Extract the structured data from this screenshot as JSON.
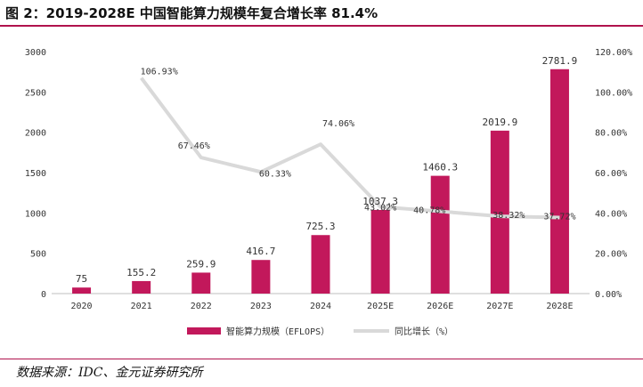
{
  "figure": {
    "title": "图 2：2019-2028E 中国智能算力规模年复合增长率 81.4%",
    "source": "数据来源：IDC、金元证券研究所"
  },
  "colors": {
    "accent": "#b0124d",
    "bar": "#c2185b",
    "line": "#d9d9d9"
  },
  "chart_data": {
    "type": "bar",
    "categories": [
      "2020",
      "2021",
      "2022",
      "2023",
      "2024",
      "2025E",
      "2026E",
      "2027E",
      "2028E"
    ],
    "series": [
      {
        "name": "智能算力规模（EFLOPS）",
        "type": "bar",
        "axis": "left",
        "values": [
          75,
          155.2,
          259.9,
          416.7,
          725.3,
          1037.3,
          1460.3,
          2019.9,
          2781.9
        ],
        "labels": [
          "75",
          "155.2",
          "259.9",
          "416.7",
          "725.3",
          "1037.3",
          "1460.3",
          "2019.9",
          "2781.9"
        ]
      },
      {
        "name": "同比增长（%）",
        "type": "line",
        "axis": "right",
        "values": [
          null,
          106.93,
          67.46,
          60.33,
          74.06,
          43.02,
          40.78,
          38.32,
          37.72
        ],
        "labels": [
          null,
          "106.93%",
          "67.46%",
          "60.33%",
          "74.06%",
          "43.02%",
          "40.78%",
          "38.32%",
          "37.72%"
        ]
      }
    ],
    "y_left": {
      "range": [
        0,
        3000
      ],
      "ticks": [
        "0",
        "500",
        "1000",
        "1500",
        "2000",
        "2500",
        "3000"
      ]
    },
    "y_right": {
      "range": [
        0,
        120
      ],
      "ticks": [
        "0.00%",
        "20.00%",
        "40.00%",
        "60.00%",
        "80.00%",
        "100.00%",
        "120.00%"
      ]
    },
    "grid": false,
    "legend_position": "bottom"
  }
}
